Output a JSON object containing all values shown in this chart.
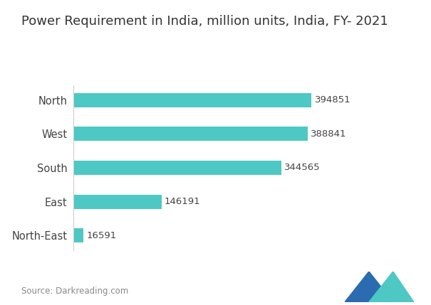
{
  "title": "Power Requirement in India, million units, India, FY- 2021",
  "categories": [
    "North-East",
    "East",
    "South",
    "West",
    "North"
  ],
  "values": [
    16591,
    146191,
    344565,
    388841,
    394851
  ],
  "bar_color": "#4ec8c4",
  "value_labels": [
    "16591",
    "146191",
    "344565",
    "388841",
    "394851"
  ],
  "source_text": "Source: Darkreading.com",
  "background_color": "#ffffff",
  "title_fontsize": 13,
  "label_fontsize": 10.5,
  "value_fontsize": 9.5,
  "source_fontsize": 8.5,
  "xlim": [
    0,
    450000
  ],
  "logo_dark_color": "#2b6cb0",
  "logo_teal_color": "#4ec8c4"
}
